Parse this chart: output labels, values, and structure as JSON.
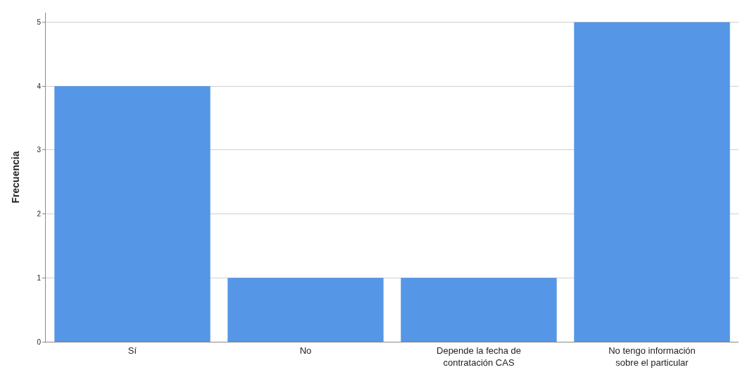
{
  "chart_data": {
    "type": "bar",
    "ylabel": "Frecuencia",
    "categories": [
      "Sí",
      "No",
      "Depende la fecha de\ncontratación CAS",
      "No tengo información\nsobre el particular"
    ],
    "values": [
      4,
      1,
      1,
      5
    ],
    "color": "#5596e6",
    "ylim": [
      0,
      5.15
    ],
    "yticks": [
      0,
      1,
      2,
      3,
      4,
      5
    ],
    "grid": "y"
  }
}
